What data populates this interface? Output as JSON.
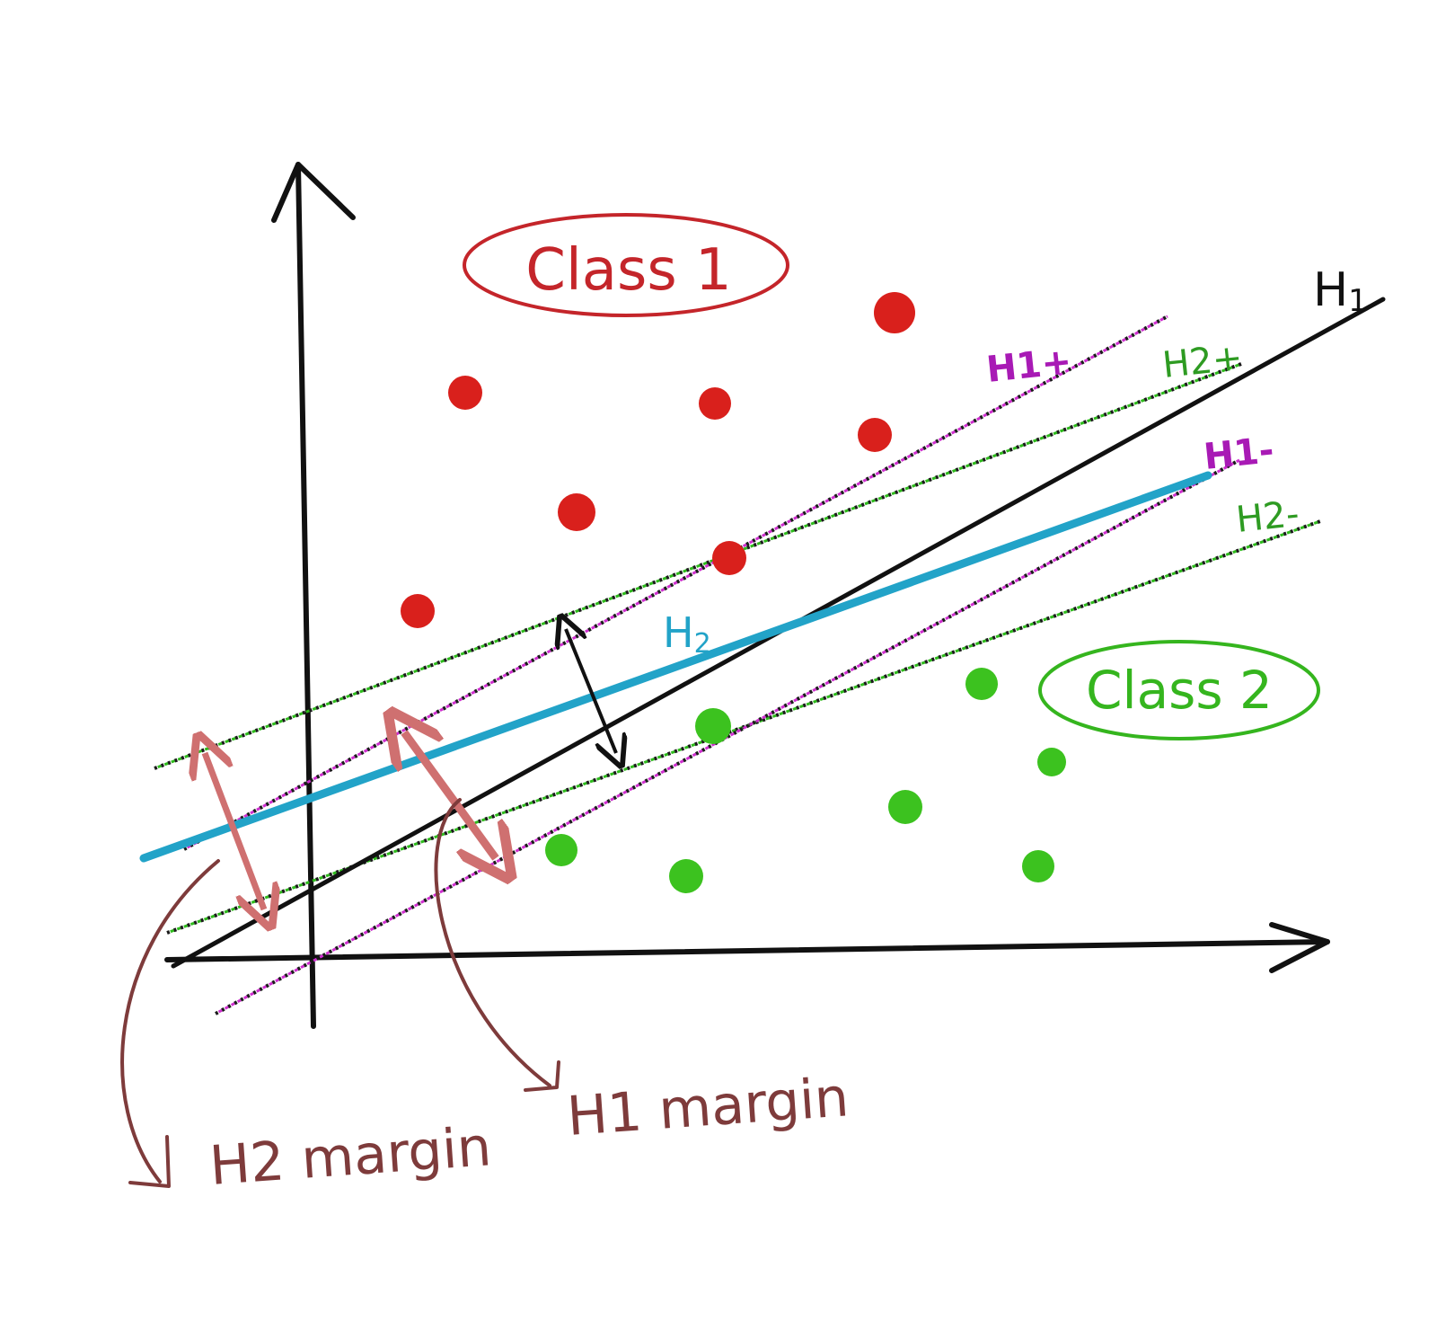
{
  "labels": {
    "class1": "Class 1",
    "class2": "Class 2",
    "h1": "H",
    "h1_sub": "1",
    "h2": "H",
    "h2_sub": "2",
    "h1_plus": "H1+",
    "h2_plus": "H2+",
    "h1_minus": "H1-",
    "h2_minus": "H2-",
    "h1_margin": "H1 margin",
    "h2_margin": "H2 margin"
  },
  "colors": {
    "class1": "#d42020",
    "class2": "#35b51e",
    "h1_line": "#111111",
    "h2_line": "#22a3c8",
    "h1_margin_lines": "#c21fc2",
    "h2_margin_lines": "#2e9b22",
    "margin_arrows": "#cf7070",
    "margin_labels": "#7e3b3b"
  }
}
